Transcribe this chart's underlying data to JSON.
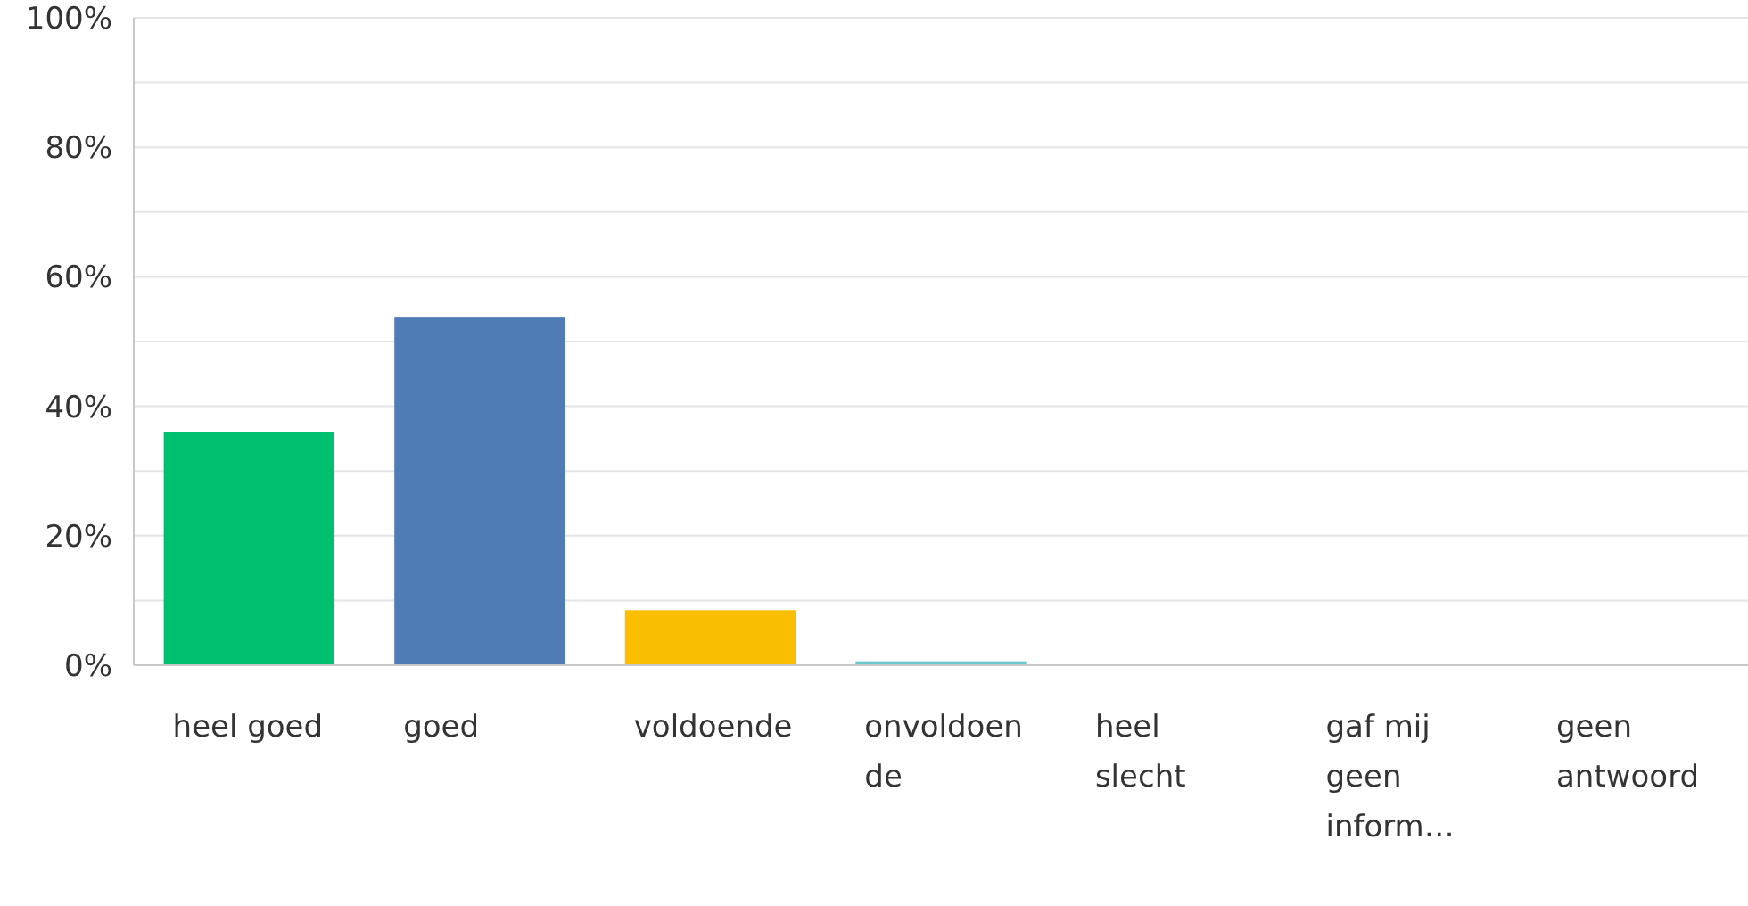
{
  "chart_data": {
    "type": "bar",
    "categories": [
      "heel goed",
      "goed",
      "voldoende",
      "onvoldoende",
      "heel slecht",
      "gaf mij geen inform…",
      "geen antwoord"
    ],
    "values": [
      36,
      53.7,
      8.5,
      0.6,
      0,
      0,
      0
    ],
    "colors": [
      "#00bf6f",
      "#507cb6",
      "#f9be00",
      "#6bc8cd",
      "#a0a0a0",
      "#a0a0a0",
      "#a0a0a0"
    ],
    "ylim": [
      0,
      100
    ],
    "yticks": [
      {
        "value": 0,
        "label": "0%"
      },
      {
        "value": 10,
        "label": null
      },
      {
        "value": 20,
        "label": "20%"
      },
      {
        "value": 30,
        "label": null
      },
      {
        "value": 40,
        "label": "40%"
      },
      {
        "value": 50,
        "label": null
      },
      {
        "value": 60,
        "label": "60%"
      },
      {
        "value": 70,
        "label": null
      },
      {
        "value": 80,
        "label": "80%"
      },
      {
        "value": 90,
        "label": null
      },
      {
        "value": 100,
        "label": "100%"
      }
    ],
    "grid": true
  }
}
